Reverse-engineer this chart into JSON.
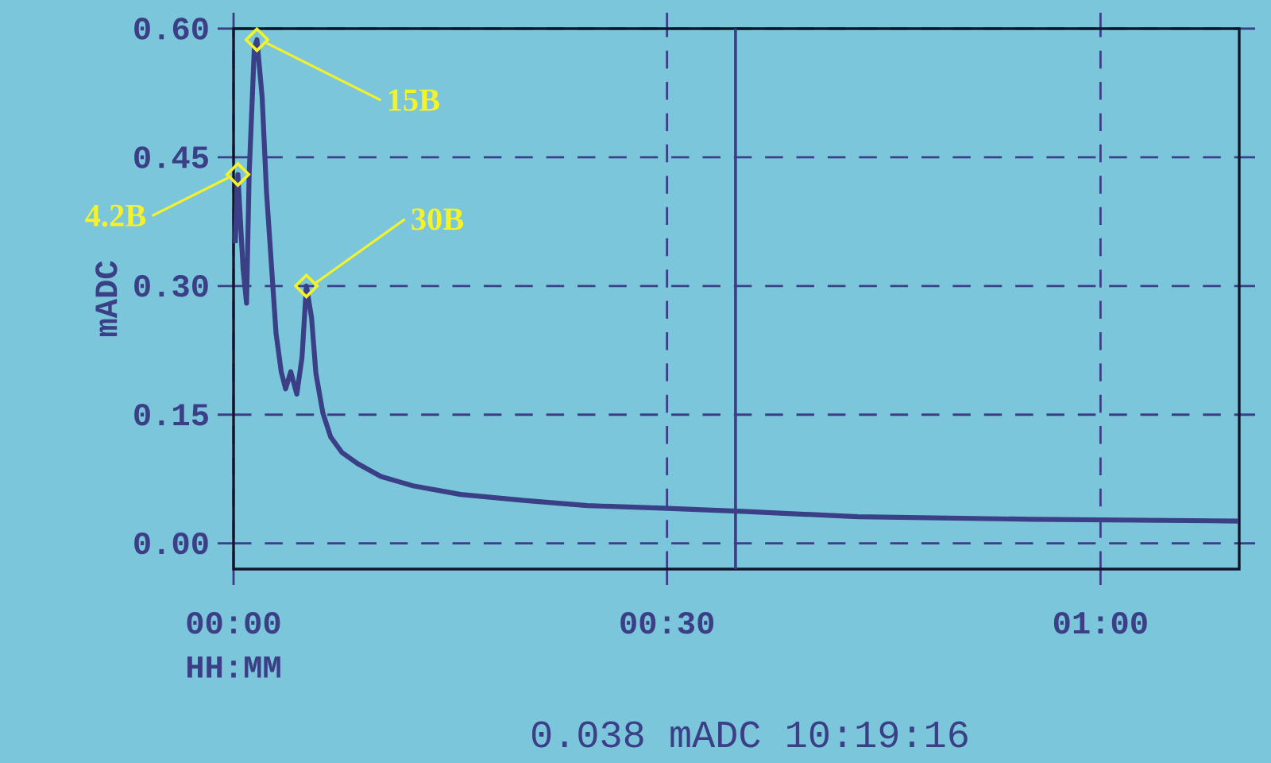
{
  "chart_data": {
    "type": "line",
    "xlabel": "HH:MM",
    "ylabel": "mADC",
    "x": [
      0.002,
      0.005,
      0.011,
      0.015,
      0.018,
      0.024,
      0.027,
      0.033,
      0.038,
      0.044,
      0.049,
      0.055,
      0.06,
      0.066,
      0.073,
      0.079,
      0.084,
      0.09,
      0.095,
      0.103,
      0.112,
      0.125,
      0.143,
      0.17,
      0.207,
      0.262,
      0.335,
      0.408,
      0.495,
      0.592,
      0.72,
      0.921,
      1.159
    ],
    "series": [
      {
        "color": "#3a3f86",
        "values": [
          0.35,
          0.43,
          0.32,
          0.28,
          0.43,
          0.578,
          0.587,
          0.52,
          0.41,
          0.32,
          0.245,
          0.2,
          0.18,
          0.2,
          0.174,
          0.217,
          0.3,
          0.263,
          0.198,
          0.152,
          0.124,
          0.106,
          0.093,
          0.078,
          0.067,
          0.057,
          0.05,
          0.044,
          0.041,
          0.037,
          0.031,
          0.028,
          0.026
        ]
      }
    ],
    "xlim": [
      0,
      1.16
    ],
    "ylim": [
      -0.03,
      0.6
    ],
    "xticks": [
      {
        "value": 0,
        "label": "00:00"
      },
      {
        "value": 0.5,
        "label": "00:30"
      },
      {
        "value": 1,
        "label": "01:00"
      }
    ],
    "yticks": [
      {
        "value": 0,
        "label": "0.00"
      },
      {
        "value": 0.15,
        "label": "0.15"
      },
      {
        "value": 0.3,
        "label": "0.30"
      },
      {
        "value": 0.45,
        "label": "0.45"
      },
      {
        "value": 0.6,
        "label": "0.60"
      }
    ],
    "grid": true,
    "line_style": "solid",
    "marker": "none",
    "ref_lines": [
      {
        "axis": "x",
        "value": 0.579,
        "color": "#3a3f86",
        "line_style": "solid"
      }
    ],
    "annotations": [
      {
        "text": "4.2B",
        "x": 0.005,
        "y": 0.43
      },
      {
        "text": "15B",
        "x": 0.027,
        "y": 0.587
      },
      {
        "text": "30B",
        "x": 0.084,
        "y": 0.3
      },
      "0.038 mADC 10:19:16"
    ]
  }
}
